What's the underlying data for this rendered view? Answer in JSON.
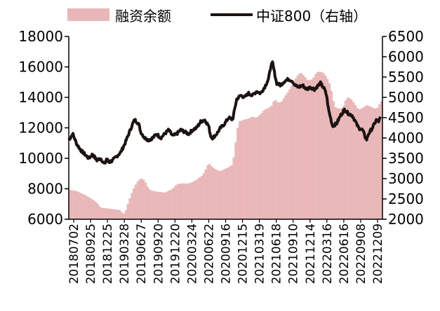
{
  "chart_data": {
    "type": "bar+line",
    "legend": [
      "融资余额",
      "中证800（右轴）"
    ],
    "legend_placement": "top",
    "y_left": {
      "range": [
        6000,
        18000
      ],
      "ticks": [
        "6000",
        "8000",
        "10000",
        "12000",
        "14000",
        "16000",
        "18000"
      ]
    },
    "y_right": {
      "range": [
        2000,
        6500
      ],
      "ticks": [
        "2000",
        "2500",
        "3000",
        "3500",
        "4000",
        "4500",
        "5000",
        "5500",
        "6000",
        "6500"
      ]
    },
    "x_tick_labels": [
      "20180702",
      "20180925",
      "20181225",
      "20190328",
      "20190627",
      "20190920",
      "20191220",
      "20200324",
      "20200622",
      "20200916",
      "20201215",
      "20210319",
      "20210618",
      "20210910",
      "20211214",
      "20220316",
      "20220616",
      "20220908",
      "20221209"
    ],
    "colors": {
      "bars": "#e9b7b7",
      "line": "#1a1311"
    },
    "series": [
      {
        "name": "融资余额",
        "kind": "bar",
        "axis": "left",
        "points": [
          [
            0,
            7950
          ],
          [
            4,
            7850
          ],
          [
            8,
            7600
          ],
          [
            12,
            7300
          ],
          [
            14,
            7100
          ],
          [
            16,
            6750
          ],
          [
            20,
            6700
          ],
          [
            23,
            6650
          ],
          [
            26,
            6600
          ],
          [
            27,
            6350
          ],
          [
            28,
            6400
          ],
          [
            30,
            7200
          ],
          [
            32,
            7900
          ],
          [
            34,
            8400
          ],
          [
            36,
            8700
          ],
          [
            38,
            8550
          ],
          [
            40,
            8000
          ],
          [
            42,
            7850
          ],
          [
            45,
            7800
          ],
          [
            48,
            7750
          ],
          [
            52,
            8000
          ],
          [
            54,
            8300
          ],
          [
            56,
            8350
          ],
          [
            60,
            8350
          ],
          [
            62,
            8450
          ],
          [
            64,
            8600
          ],
          [
            67,
            8900
          ],
          [
            69,
            9400
          ],
          [
            70,
            9700
          ],
          [
            72,
            9400
          ],
          [
            74,
            9250
          ],
          [
            76,
            9150
          ],
          [
            78,
            9300
          ],
          [
            80,
            9400
          ],
          [
            82,
            9600
          ],
          [
            83,
            10500
          ],
          [
            84,
            11600
          ],
          [
            85,
            12400
          ],
          [
            88,
            12550
          ],
          [
            90,
            12600
          ],
          [
            92,
            12750
          ],
          [
            94,
            12650
          ],
          [
            96,
            12900
          ],
          [
            98,
            13200
          ],
          [
            100,
            13300
          ],
          [
            102,
            13500
          ],
          [
            103,
            13950
          ],
          [
            104,
            13700
          ],
          [
            106,
            13650
          ],
          [
            107,
            13800
          ],
          [
            108,
            14050
          ],
          [
            110,
            14400
          ],
          [
            112,
            14900
          ],
          [
            114,
            15350
          ],
          [
            116,
            15650
          ],
          [
            118,
            15400
          ],
          [
            119,
            15200
          ],
          [
            120,
            15100
          ],
          [
            122,
            15200
          ],
          [
            124,
            15650
          ],
          [
            126,
            15700
          ],
          [
            128,
            15550
          ],
          [
            130,
            15100
          ],
          [
            131,
            14750
          ],
          [
            132,
            14100
          ],
          [
            133,
            13400
          ],
          [
            135,
            13250
          ],
          [
            137,
            13300
          ],
          [
            138,
            13600
          ],
          [
            139,
            14000
          ],
          [
            141,
            13950
          ],
          [
            143,
            13600
          ],
          [
            145,
            13200
          ],
          [
            147,
            13300
          ],
          [
            149,
            13500
          ],
          [
            151,
            13400
          ],
          [
            153,
            13250
          ],
          [
            155,
            13350
          ],
          [
            156,
            13750
          ]
        ]
      },
      {
        "name": "中证800（右轴）",
        "kind": "line",
        "axis": "right",
        "points": [
          [
            0,
            3950
          ],
          [
            2,
            4100
          ],
          [
            4,
            3850
          ],
          [
            6,
            3700
          ],
          [
            8,
            3600
          ],
          [
            10,
            3500
          ],
          [
            12,
            3600
          ],
          [
            14,
            3450
          ],
          [
            16,
            3500
          ],
          [
            18,
            3350
          ],
          [
            19,
            3500
          ],
          [
            20,
            3400
          ],
          [
            22,
            3450
          ],
          [
            24,
            3550
          ],
          [
            26,
            3650
          ],
          [
            27,
            3750
          ],
          [
            28,
            3850
          ],
          [
            30,
            4100
          ],
          [
            32,
            4350
          ],
          [
            33,
            4450
          ],
          [
            34,
            4400
          ],
          [
            35,
            4350
          ],
          [
            36,
            4150
          ],
          [
            38,
            4000
          ],
          [
            40,
            3950
          ],
          [
            42,
            4000
          ],
          [
            44,
            4100
          ],
          [
            46,
            4000
          ],
          [
            48,
            4100
          ],
          [
            50,
            4200
          ],
          [
            52,
            4050
          ],
          [
            54,
            4100
          ],
          [
            56,
            4200
          ],
          [
            58,
            4150
          ],
          [
            60,
            4100
          ],
          [
            62,
            4200
          ],
          [
            64,
            4250
          ],
          [
            66,
            4400
          ],
          [
            68,
            4450
          ],
          [
            70,
            4300
          ],
          [
            71,
            4050
          ],
          [
            72,
            4000
          ],
          [
            74,
            4100
          ],
          [
            76,
            4250
          ],
          [
            78,
            4350
          ],
          [
            80,
            4500
          ],
          [
            82,
            4450
          ],
          [
            84,
            4950
          ],
          [
            86,
            5050
          ],
          [
            88,
            5000
          ],
          [
            90,
            5100
          ],
          [
            92,
            5050
          ],
          [
            94,
            5150
          ],
          [
            96,
            5100
          ],
          [
            98,
            5250
          ],
          [
            100,
            5450
          ],
          [
            101,
            5750
          ],
          [
            102,
            5850
          ],
          [
            103,
            5600
          ],
          [
            104,
            5350
          ],
          [
            106,
            5300
          ],
          [
            108,
            5400
          ],
          [
            110,
            5450
          ],
          [
            112,
            5400
          ],
          [
            113,
            5300
          ],
          [
            115,
            5250
          ],
          [
            117,
            5300
          ],
          [
            119,
            5200
          ],
          [
            121,
            5250
          ],
          [
            123,
            5200
          ],
          [
            125,
            5300
          ],
          [
            126,
            5350
          ],
          [
            128,
            5200
          ],
          [
            129,
            5050
          ],
          [
            130,
            4700
          ],
          [
            131,
            4500
          ],
          [
            132,
            4300
          ],
          [
            134,
            4350
          ],
          [
            136,
            4550
          ],
          [
            138,
            4700
          ],
          [
            140,
            4600
          ],
          [
            142,
            4550
          ],
          [
            144,
            4350
          ],
          [
            145,
            4250
          ],
          [
            147,
            4200
          ],
          [
            149,
            3950
          ],
          [
            150,
            4100
          ],
          [
            152,
            4250
          ],
          [
            154,
            4450
          ],
          [
            155,
            4400
          ],
          [
            156,
            4500
          ]
        ]
      }
    ]
  }
}
